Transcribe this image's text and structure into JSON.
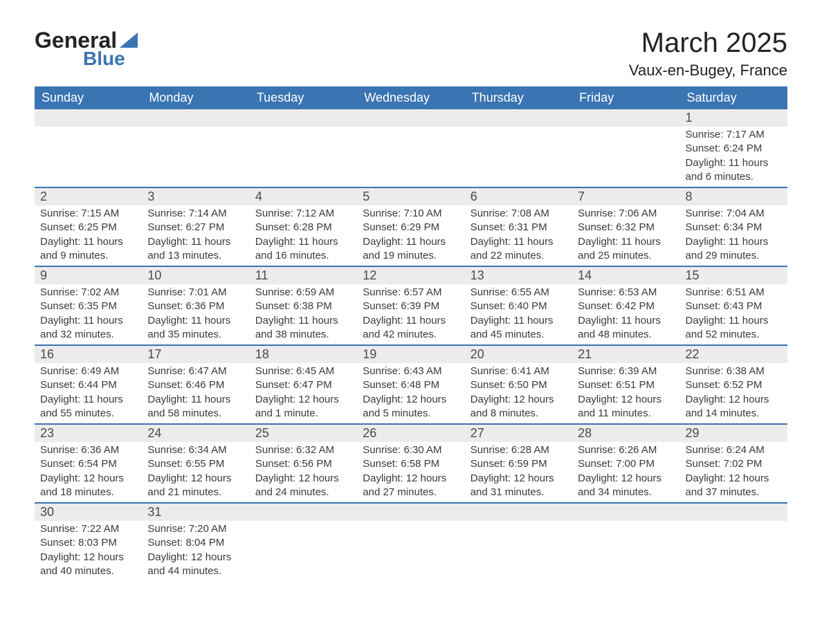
{
  "logo": {
    "text1": "General",
    "text2": "Blue"
  },
  "title": "March 2025",
  "location": "Vaux-en-Bugey, France",
  "colors": {
    "header_bg": "#3a74b2",
    "header_fg": "#ffffff",
    "daynum_bg": "#ececec",
    "row_border": "#3a74b2",
    "text": "#333333"
  },
  "weekdays": [
    "Sunday",
    "Monday",
    "Tuesday",
    "Wednesday",
    "Thursday",
    "Friday",
    "Saturday"
  ],
  "weeks": [
    [
      null,
      null,
      null,
      null,
      null,
      null,
      {
        "n": "1",
        "sunrise": "Sunrise: 7:17 AM",
        "sunset": "Sunset: 6:24 PM",
        "daylight": "Daylight: 11 hours and 6 minutes."
      }
    ],
    [
      {
        "n": "2",
        "sunrise": "Sunrise: 7:15 AM",
        "sunset": "Sunset: 6:25 PM",
        "daylight": "Daylight: 11 hours and 9 minutes."
      },
      {
        "n": "3",
        "sunrise": "Sunrise: 7:14 AM",
        "sunset": "Sunset: 6:27 PM",
        "daylight": "Daylight: 11 hours and 13 minutes."
      },
      {
        "n": "4",
        "sunrise": "Sunrise: 7:12 AM",
        "sunset": "Sunset: 6:28 PM",
        "daylight": "Daylight: 11 hours and 16 minutes."
      },
      {
        "n": "5",
        "sunrise": "Sunrise: 7:10 AM",
        "sunset": "Sunset: 6:29 PM",
        "daylight": "Daylight: 11 hours and 19 minutes."
      },
      {
        "n": "6",
        "sunrise": "Sunrise: 7:08 AM",
        "sunset": "Sunset: 6:31 PM",
        "daylight": "Daylight: 11 hours and 22 minutes."
      },
      {
        "n": "7",
        "sunrise": "Sunrise: 7:06 AM",
        "sunset": "Sunset: 6:32 PM",
        "daylight": "Daylight: 11 hours and 25 minutes."
      },
      {
        "n": "8",
        "sunrise": "Sunrise: 7:04 AM",
        "sunset": "Sunset: 6:34 PM",
        "daylight": "Daylight: 11 hours and 29 minutes."
      }
    ],
    [
      {
        "n": "9",
        "sunrise": "Sunrise: 7:02 AM",
        "sunset": "Sunset: 6:35 PM",
        "daylight": "Daylight: 11 hours and 32 minutes."
      },
      {
        "n": "10",
        "sunrise": "Sunrise: 7:01 AM",
        "sunset": "Sunset: 6:36 PM",
        "daylight": "Daylight: 11 hours and 35 minutes."
      },
      {
        "n": "11",
        "sunrise": "Sunrise: 6:59 AM",
        "sunset": "Sunset: 6:38 PM",
        "daylight": "Daylight: 11 hours and 38 minutes."
      },
      {
        "n": "12",
        "sunrise": "Sunrise: 6:57 AM",
        "sunset": "Sunset: 6:39 PM",
        "daylight": "Daylight: 11 hours and 42 minutes."
      },
      {
        "n": "13",
        "sunrise": "Sunrise: 6:55 AM",
        "sunset": "Sunset: 6:40 PM",
        "daylight": "Daylight: 11 hours and 45 minutes."
      },
      {
        "n": "14",
        "sunrise": "Sunrise: 6:53 AM",
        "sunset": "Sunset: 6:42 PM",
        "daylight": "Daylight: 11 hours and 48 minutes."
      },
      {
        "n": "15",
        "sunrise": "Sunrise: 6:51 AM",
        "sunset": "Sunset: 6:43 PM",
        "daylight": "Daylight: 11 hours and 52 minutes."
      }
    ],
    [
      {
        "n": "16",
        "sunrise": "Sunrise: 6:49 AM",
        "sunset": "Sunset: 6:44 PM",
        "daylight": "Daylight: 11 hours and 55 minutes."
      },
      {
        "n": "17",
        "sunrise": "Sunrise: 6:47 AM",
        "sunset": "Sunset: 6:46 PM",
        "daylight": "Daylight: 11 hours and 58 minutes."
      },
      {
        "n": "18",
        "sunrise": "Sunrise: 6:45 AM",
        "sunset": "Sunset: 6:47 PM",
        "daylight": "Daylight: 12 hours and 1 minute."
      },
      {
        "n": "19",
        "sunrise": "Sunrise: 6:43 AM",
        "sunset": "Sunset: 6:48 PM",
        "daylight": "Daylight: 12 hours and 5 minutes."
      },
      {
        "n": "20",
        "sunrise": "Sunrise: 6:41 AM",
        "sunset": "Sunset: 6:50 PM",
        "daylight": "Daylight: 12 hours and 8 minutes."
      },
      {
        "n": "21",
        "sunrise": "Sunrise: 6:39 AM",
        "sunset": "Sunset: 6:51 PM",
        "daylight": "Daylight: 12 hours and 11 minutes."
      },
      {
        "n": "22",
        "sunrise": "Sunrise: 6:38 AM",
        "sunset": "Sunset: 6:52 PM",
        "daylight": "Daylight: 12 hours and 14 minutes."
      }
    ],
    [
      {
        "n": "23",
        "sunrise": "Sunrise: 6:36 AM",
        "sunset": "Sunset: 6:54 PM",
        "daylight": "Daylight: 12 hours and 18 minutes."
      },
      {
        "n": "24",
        "sunrise": "Sunrise: 6:34 AM",
        "sunset": "Sunset: 6:55 PM",
        "daylight": "Daylight: 12 hours and 21 minutes."
      },
      {
        "n": "25",
        "sunrise": "Sunrise: 6:32 AM",
        "sunset": "Sunset: 6:56 PM",
        "daylight": "Daylight: 12 hours and 24 minutes."
      },
      {
        "n": "26",
        "sunrise": "Sunrise: 6:30 AM",
        "sunset": "Sunset: 6:58 PM",
        "daylight": "Daylight: 12 hours and 27 minutes."
      },
      {
        "n": "27",
        "sunrise": "Sunrise: 6:28 AM",
        "sunset": "Sunset: 6:59 PM",
        "daylight": "Daylight: 12 hours and 31 minutes."
      },
      {
        "n": "28",
        "sunrise": "Sunrise: 6:26 AM",
        "sunset": "Sunset: 7:00 PM",
        "daylight": "Daylight: 12 hours and 34 minutes."
      },
      {
        "n": "29",
        "sunrise": "Sunrise: 6:24 AM",
        "sunset": "Sunset: 7:02 PM",
        "daylight": "Daylight: 12 hours and 37 minutes."
      }
    ],
    [
      {
        "n": "30",
        "sunrise": "Sunrise: 7:22 AM",
        "sunset": "Sunset: 8:03 PM",
        "daylight": "Daylight: 12 hours and 40 minutes."
      },
      {
        "n": "31",
        "sunrise": "Sunrise: 7:20 AM",
        "sunset": "Sunset: 8:04 PM",
        "daylight": "Daylight: 12 hours and 44 minutes."
      },
      null,
      null,
      null,
      null,
      null
    ]
  ]
}
